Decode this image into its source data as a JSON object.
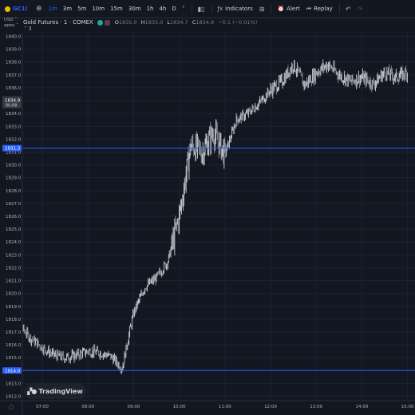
{
  "toolbar": {
    "symbol": "GC1!",
    "add_icon": "plus-circle-icon",
    "timeframes": [
      "1m",
      "3m",
      "5m",
      "10m",
      "15m",
      "30m",
      "1h",
      "4h",
      "D"
    ],
    "active_timeframe": "1m",
    "indicators_label": "Indicators",
    "alert_label": "Alert",
    "replay_label": "Replay"
  },
  "legend": {
    "title": "Gold Futures · 1 · COMEX",
    "o_label": "O",
    "o": "1835.0",
    "h_label": "H",
    "h": "1835.0",
    "l_label": "L",
    "l": "1834.7",
    "c_label": "C",
    "c": "1834.9",
    "change": "−0.1 (−0.01%)",
    "collapse": "˅ 3"
  },
  "axis_unit": "USD",
  "axis_mode": "apex",
  "price_tag": {
    "price": "1834.9",
    "countdown": "00:08"
  },
  "hline_tags": [
    "1831.3",
    "1814.0"
  ],
  "watermark": "TradingView",
  "chart_data": {
    "type": "candlestick",
    "ylim": [
      1812,
      1840
    ],
    "y_ticks": [
      "1840.0",
      "1839.0",
      "1838.0",
      "1837.0",
      "1836.0",
      "1835.0",
      "1834.0",
      "1833.0",
      "1832.0",
      "1831.0",
      "1830.0",
      "1829.0",
      "1828.0",
      "1827.0",
      "1826.0",
      "1825.0",
      "1824.0",
      "1823.0",
      "1822.0",
      "1821.0",
      "1820.0",
      "1819.0",
      "1818.0",
      "1817.0",
      "1816.0",
      "1815.0",
      "1814.0",
      "1813.0",
      "1812.0"
    ],
    "x_ticks": [
      "07:00",
      "08:00",
      "09:00",
      "10:00",
      "11:00",
      "12:00",
      "13:00",
      "14:00",
      "15:00"
    ],
    "horizontal_lines": [
      1831.3,
      1814.0
    ],
    "last_price": 1834.9,
    "x": [
      "06:30",
      "06:45",
      "07:00",
      "07:15",
      "07:30",
      "07:45",
      "08:00",
      "08:15",
      "08:30",
      "08:45",
      "09:00",
      "09:15",
      "09:30",
      "09:45",
      "10:00",
      "10:15",
      "10:30",
      "10:45",
      "11:00",
      "11:15",
      "11:30",
      "11:45",
      "12:00",
      "12:15",
      "12:30",
      "12:45",
      "13:00",
      "13:15",
      "13:30",
      "13:45",
      "14:00",
      "14:15",
      "14:30",
      "14:45",
      "15:00"
    ],
    "close": [
      1817.5,
      1816.5,
      1815.8,
      1815.2,
      1815.0,
      1815.2,
      1815.5,
      1815.4,
      1815.1,
      1814.2,
      1818.5,
      1820.5,
      1821.2,
      1822.5,
      1826.0,
      1831.5,
      1831.0,
      1832.5,
      1830.8,
      1833.5,
      1834.0,
      1834.8,
      1835.8,
      1836.5,
      1837.8,
      1836.2,
      1837.2,
      1837.8,
      1837.0,
      1836.5,
      1836.8,
      1836.3,
      1837.2,
      1836.8,
      1837.2
    ]
  }
}
